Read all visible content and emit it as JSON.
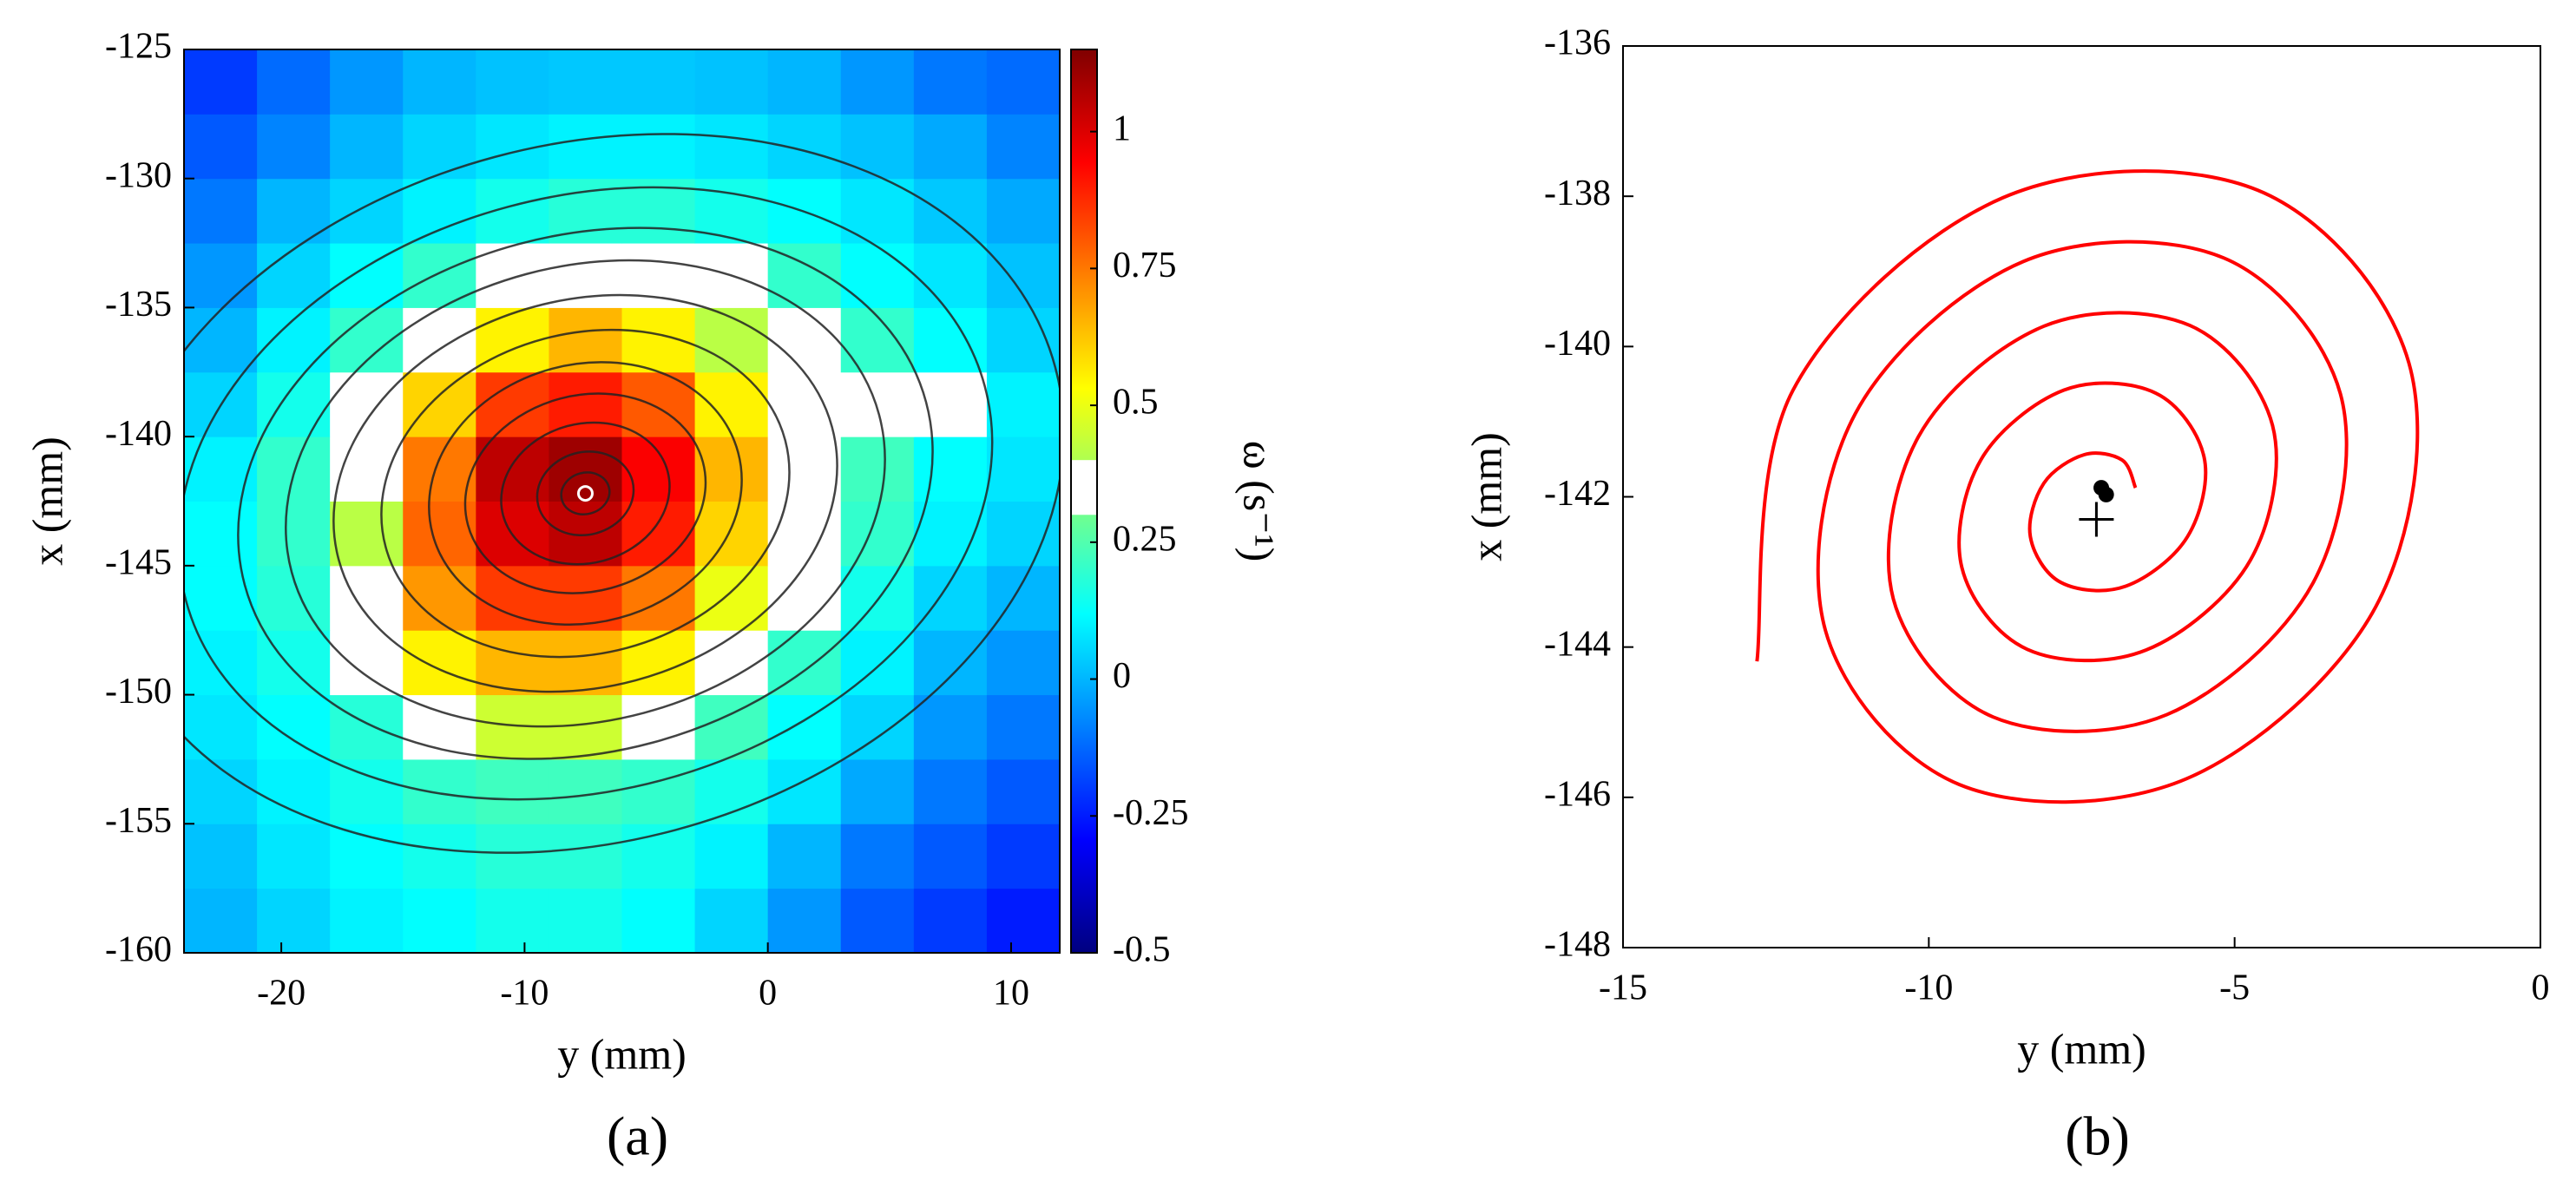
{
  "chart_data": [
    {
      "type": "heatmap",
      "caption": "(a)",
      "x_label": "y (mm)",
      "y_label": "x (mm)",
      "xlim": [
        -24,
        12
      ],
      "xticks": [
        -20,
        -10,
        0,
        10
      ],
      "ylim": [
        -160,
        -125
      ],
      "yticks": [
        -160,
        -155,
        -150,
        -145,
        -140,
        -135,
        -130,
        -125
      ],
      "xbins": [
        -24,
        -21,
        -18,
        -15,
        -12,
        -9,
        -6,
        -3,
        0,
        3,
        6,
        9,
        12
      ],
      "ybins": [
        -160,
        -157.5,
        -155,
        -152.5,
        -150,
        -147.5,
        -145,
        -142.5,
        -140,
        -137.5,
        -135,
        -132.5,
        -130,
        -127.5,
        -125
      ],
      "z": [
        [
          0.0,
          0.05,
          0.1,
          0.12,
          0.15,
          0.15,
          0.12,
          0.05,
          -0.05,
          -0.15,
          -0.2,
          -0.25
        ],
        [
          0.02,
          0.08,
          0.12,
          0.15,
          0.18,
          0.18,
          0.15,
          0.1,
          0.0,
          -0.1,
          -0.15,
          -0.2
        ],
        [
          0.05,
          0.1,
          0.15,
          0.2,
          0.22,
          0.22,
          0.2,
          0.15,
          0.08,
          -0.02,
          -0.1,
          -0.15
        ],
        [
          0.08,
          0.12,
          0.18,
          0.3,
          0.45,
          0.45,
          0.35,
          0.22,
          0.12,
          0.05,
          -0.05,
          -0.1
        ],
        [
          0.1,
          0.15,
          0.3,
          0.55,
          0.65,
          0.65,
          0.55,
          0.4,
          0.2,
          0.1,
          0.0,
          -0.05
        ],
        [
          0.12,
          0.18,
          0.38,
          0.7,
          0.85,
          0.85,
          0.75,
          0.5,
          0.3,
          0.15,
          0.05,
          0.0
        ],
        [
          0.12,
          0.2,
          0.42,
          0.78,
          1.0,
          1.05,
          0.9,
          0.6,
          0.35,
          0.2,
          0.1,
          0.05
        ],
        [
          0.1,
          0.2,
          0.4,
          0.75,
          1.05,
          1.1,
          0.95,
          0.65,
          0.35,
          0.22,
          0.12,
          0.08
        ],
        [
          0.05,
          0.15,
          0.3,
          0.6,
          0.85,
          0.9,
          0.8,
          0.55,
          0.35,
          0.3,
          0.32,
          0.1
        ],
        [
          0.0,
          0.1,
          0.2,
          0.38,
          0.55,
          0.65,
          0.55,
          0.42,
          0.3,
          0.2,
          0.12,
          0.05
        ],
        [
          -0.05,
          0.05,
          0.12,
          0.2,
          0.3,
          0.35,
          0.35,
          0.3,
          0.2,
          0.12,
          0.08,
          0.02
        ],
        [
          -0.1,
          0.0,
          0.05,
          0.1,
          0.15,
          0.18,
          0.18,
          0.15,
          0.12,
          0.08,
          0.03,
          -0.02
        ],
        [
          -0.15,
          -0.08,
          0.0,
          0.05,
          0.08,
          0.1,
          0.1,
          0.08,
          0.05,
          0.02,
          -0.02,
          -0.08
        ],
        [
          -0.2,
          -0.12,
          -0.05,
          0.0,
          0.02,
          0.03,
          0.03,
          0.02,
          0.0,
          -0.05,
          -0.1,
          -0.12
        ]
      ],
      "colormap": "jet",
      "colorbar": {
        "label": "ω (s⁻¹)",
        "zlim": [
          -0.5,
          1.15
        ],
        "ticks": [
          -0.5,
          -0.25,
          0,
          0.25,
          0.5,
          0.75,
          1
        ],
        "white_band": [
          0.3,
          0.4
        ]
      },
      "streamlines": {
        "color": "#222222",
        "tilt": -15,
        "center": {
          "x": -7.5,
          "y": -142.2
        },
        "ellipses": [
          {
            "rx": 1,
            "ry": 0.8
          },
          {
            "rx": 2,
            "ry": 1.6
          },
          {
            "rx": 3.5,
            "ry": 2.7
          },
          {
            "rx": 5,
            "ry": 3.8
          },
          {
            "rx": 6.5,
            "ry": 5
          },
          {
            "rx": 8.5,
            "ry": 6.2
          },
          {
            "rx": 10.5,
            "ry": 7.5
          },
          {
            "rx": 12.5,
            "ry": 8.8
          },
          {
            "rx": 14.5,
            "ry": 10
          },
          {
            "rx": 17,
            "ry": 11.5
          },
          {
            "rx": 20,
            "ry": 13.5
          }
        ]
      },
      "center_marker": {
        "x": -7.5,
        "y": -142.2,
        "color": "#ffffff"
      }
    },
    {
      "type": "line",
      "caption": "(b)",
      "x_label": "y (mm)",
      "y_label": "x (mm)",
      "xlim": [
        -15,
        0
      ],
      "xticks": [
        -15,
        -10,
        -5,
        0
      ],
      "ylim": [
        -148,
        -136
      ],
      "yticks": [
        -148,
        -146,
        -144,
        -142,
        -140,
        -138,
        -136
      ],
      "series": [
        {
          "color": "#ff0000",
          "x": [
            -6.62,
            -6.84,
            -7.46,
            -8.12,
            -8.34,
            -7.84,
            -6.78,
            -5.77,
            -5.5,
            -6.29,
            -7.79,
            -9.15,
            -9.46,
            -8.39,
            -6.45,
            -4.74,
            -4.38,
            -5.73,
            -8.12,
            -10.17,
            -10.58,
            -8.95,
            -6.11,
            -3.72,
            -3.27,
            -5.18,
            -8.46,
            -11.2,
            -11.69,
            -9.5,
            -5.78,
            -2.69,
            -2.15,
            -4.62,
            -8.79,
            -12.22,
            -12.81
          ],
          "values": [
            -141.88,
            -141.51,
            -141.44,
            -141.82,
            -142.53,
            -143.14,
            -143.19,
            -142.53,
            -141.47,
            -140.62,
            -140.58,
            -141.51,
            -142.94,
            -144.03,
            -144.04,
            -142.84,
            -141.05,
            -139.72,
            -139.73,
            -141.2,
            -143.36,
            -144.93,
            -144.9,
            -143.15,
            -140.63,
            -138.82,
            -138.87,
            -140.89,
            -143.78,
            -145.83,
            -145.75,
            -143.46,
            -140.22,
            -137.92,
            -138.02,
            -140.58,
            -144.19
          ]
        }
      ],
      "dots": {
        "color": "#000000",
        "x": [
          -7.18,
          -7.1
        ],
        "values": [
          -141.88,
          -141.97
        ]
      },
      "cross": {
        "color": "#000000",
        "x": -7.26,
        "value": -142.3
      }
    }
  ]
}
